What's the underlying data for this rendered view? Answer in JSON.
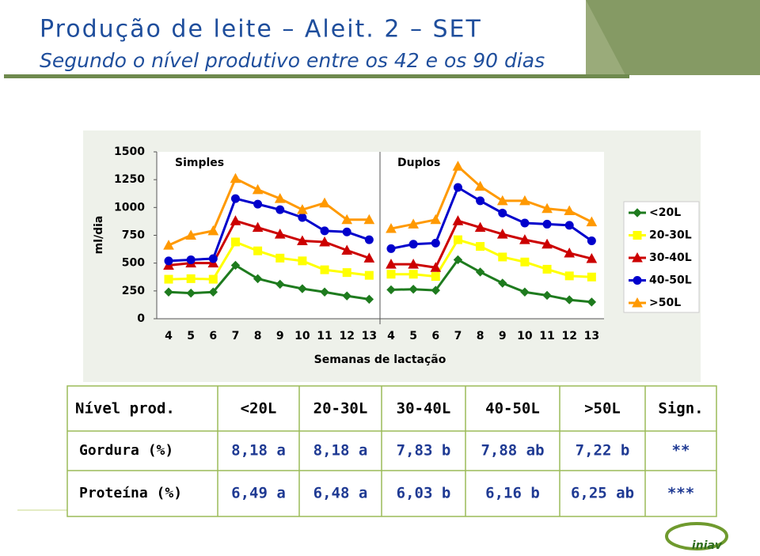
{
  "header": {
    "title": "Produção de leite – Aleit. 2 – SET",
    "subtitle": "Segundo o nível produtivo entre os 42 e os 90 dias",
    "logo": "iniav"
  },
  "chart_data": {
    "type": "line",
    "ylabel": "ml/dia",
    "xlabel": "Semanas de lactação",
    "panels": [
      "Simples",
      "Duplos"
    ],
    "categories": [
      [
        4,
        5,
        6,
        7,
        8,
        9,
        10,
        11,
        12,
        13
      ],
      [
        4,
        5,
        6,
        7,
        8,
        9,
        10,
        11,
        12,
        13
      ]
    ],
    "ylim": [
      0,
      1500
    ],
    "yticks": [
      0,
      250,
      500,
      750,
      1000,
      1250,
      1500
    ],
    "series": [
      {
        "name": "<20L",
        "color": "#1e7b1e",
        "marker": "diamond",
        "values": [
          [
            240,
            230,
            240,
            480,
            360,
            310,
            270,
            240,
            205,
            175
          ],
          [
            260,
            265,
            255,
            530,
            420,
            320,
            240,
            210,
            170,
            150
          ]
        ]
      },
      {
        "name": "20-30L",
        "color": "#ffff00",
        "marker": "square",
        "values": [
          [
            355,
            360,
            355,
            690,
            610,
            545,
            520,
            440,
            415,
            390
          ],
          [
            400,
            400,
            380,
            710,
            650,
            555,
            510,
            445,
            385,
            375
          ]
        ]
      },
      {
        "name": "30-40L",
        "color": "#cc0000",
        "marker": "triangle",
        "values": [
          [
            480,
            500,
            500,
            880,
            820,
            760,
            700,
            690,
            615,
            545
          ],
          [
            490,
            490,
            460,
            880,
            820,
            760,
            710,
            670,
            590,
            540
          ]
        ]
      },
      {
        "name": "40-50L",
        "color": "#0000cc",
        "marker": "circle",
        "values": [
          [
            520,
            530,
            540,
            1080,
            1030,
            980,
            910,
            790,
            780,
            710
          ],
          [
            630,
            670,
            680,
            1180,
            1060,
            950,
            860,
            850,
            840,
            700
          ]
        ]
      },
      {
        "name": ">50L",
        "color": "#ff9900",
        "marker": "triangle",
        "values": [
          [
            660,
            750,
            790,
            1260,
            1160,
            1080,
            980,
            1040,
            890,
            890
          ],
          [
            810,
            850,
            890,
            1370,
            1190,
            1060,
            1060,
            990,
            970,
            870
          ]
        ]
      }
    ]
  },
  "table": {
    "header": [
      "Nível prod.",
      "<20L",
      "20-30L",
      "30-40L",
      "40-50L",
      ">50L",
      "Sign."
    ],
    "rows": [
      [
        "Gordura (%)",
        "8,18 a",
        "8,18 a",
        "7,83 b",
        "7,88 ab",
        "7,22 b",
        "**"
      ],
      [
        "Proteína (%)",
        "6,49 a",
        "6,48 a",
        "6,03 b",
        "6,16 b",
        "6,25 ab",
        "***"
      ]
    ]
  }
}
